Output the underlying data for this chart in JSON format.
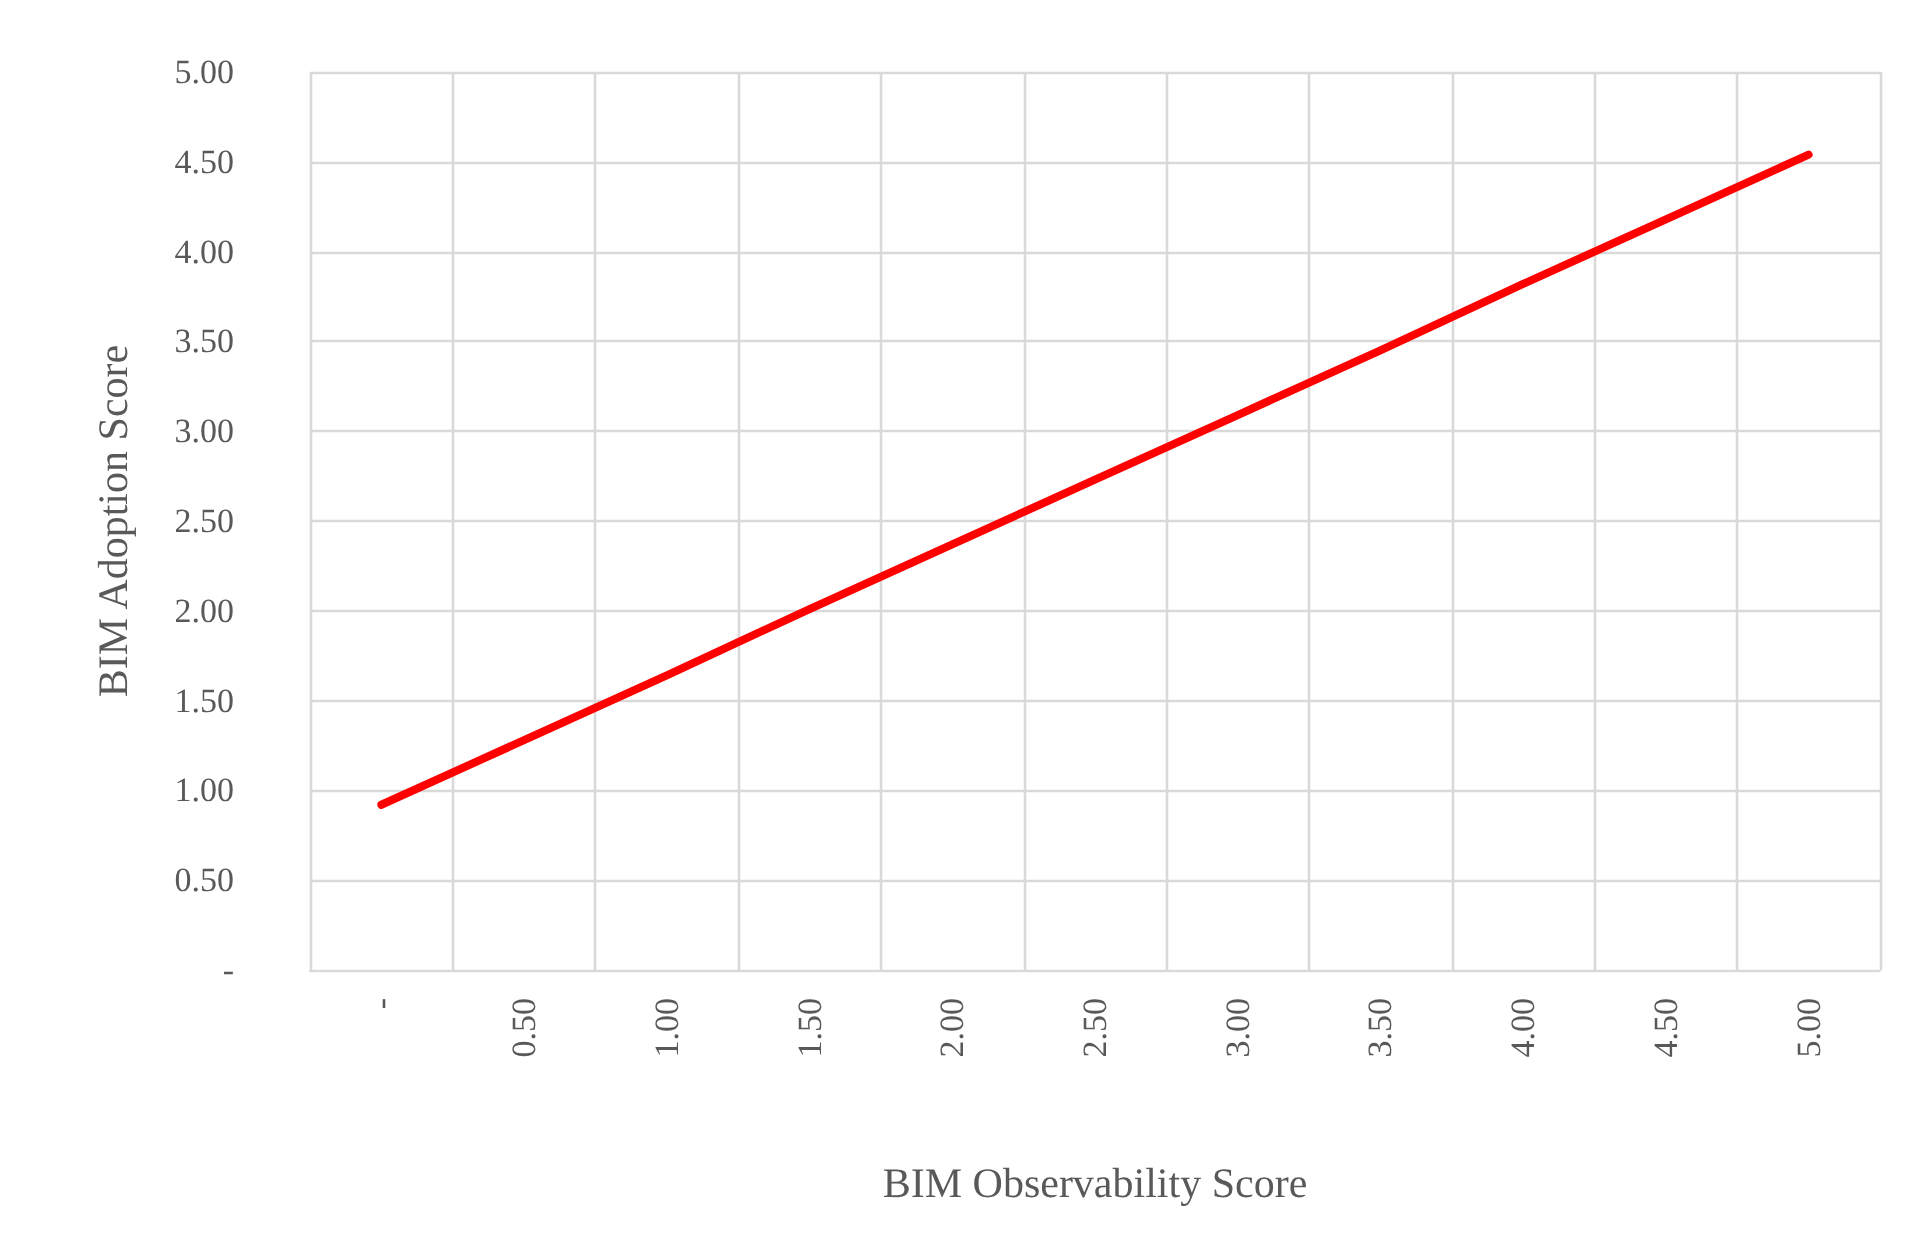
{
  "chart_data": {
    "type": "line",
    "xlabel": "BIM Observability Score",
    "ylabel": "BIM Adoption Score",
    "categories": [
      "-",
      "0.50",
      "1.00",
      "1.50",
      "2.00",
      "2.50",
      "3.00",
      "3.50",
      "4.00",
      "4.50",
      "5.00"
    ],
    "series": [
      {
        "color": "#ff0000",
        "values": [
          0.92,
          1.28,
          1.64,
          2.01,
          2.37,
          2.73,
          3.09,
          3.45,
          3.82,
          4.18,
          4.54
        ]
      }
    ],
    "ylim": [
      0,
      5
    ],
    "yticks": [
      {
        "value": 0,
        "label": "-"
      },
      {
        "value": 0.5,
        "label": "0.50"
      },
      {
        "value": 1,
        "label": "1.00"
      },
      {
        "value": 1.5,
        "label": "1.50"
      },
      {
        "value": 2,
        "label": "2.00"
      },
      {
        "value": 2.5,
        "label": "2.50"
      },
      {
        "value": 3,
        "label": "3.00"
      },
      {
        "value": 3.5,
        "label": "3.50"
      },
      {
        "value": 4,
        "label": "4.00"
      },
      {
        "value": 4.5,
        "label": "4.50"
      },
      {
        "value": 5,
        "label": "5.00"
      }
    ],
    "grid": true,
    "marker": "none",
    "line_style": "solid"
  }
}
